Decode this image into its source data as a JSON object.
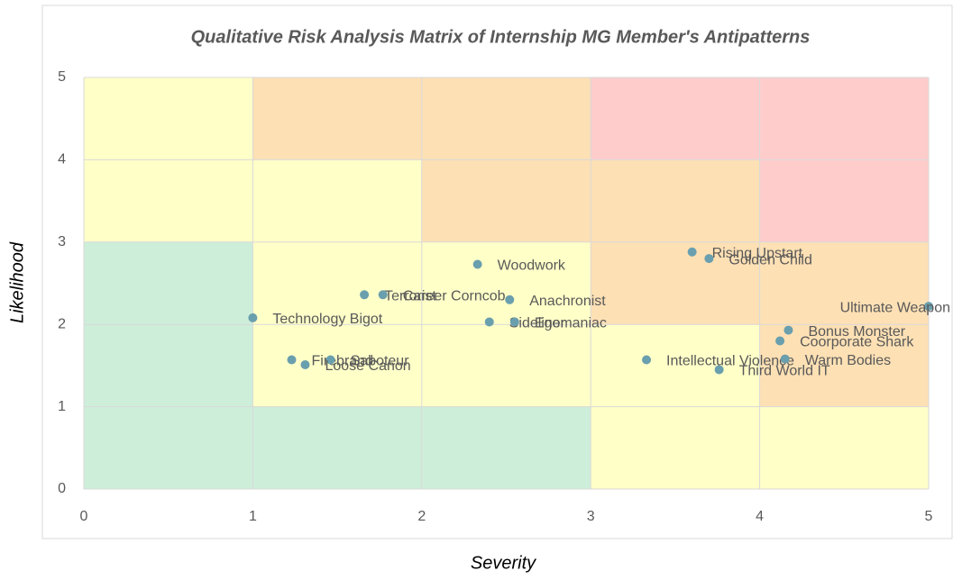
{
  "chart_data": {
    "type": "scatter",
    "title": "Qualitative Risk Analysis Matrix of Internship MG Member's Antipatterns",
    "x_label": "Severity",
    "y_label": "Likelihood",
    "xlim": [
      0,
      5
    ],
    "ylim": [
      0,
      5
    ],
    "xticks": [
      0,
      1,
      2,
      3,
      4,
      5
    ],
    "yticks": [
      0,
      1,
      2,
      3,
      4,
      5
    ],
    "grid": true,
    "marker_color": "#6a9fae",
    "zone_colors": [
      [
        "#cdeed9",
        "#cdeed9",
        "#cdeed9",
        "#ffffc8",
        "#ffffc8"
      ],
      [
        "#cdeed9",
        "#ffffc8",
        "#ffffc8",
        "#ffffc8",
        "#fde0b4"
      ],
      [
        "#cdeed9",
        "#ffffc8",
        "#ffffc8",
        "#fde0b4",
        "#fde0b4"
      ],
      [
        "#ffffc8",
        "#ffffc8",
        "#fde0b4",
        "#fde0b4",
        "#ffcccc"
      ],
      [
        "#ffffc8",
        "#fde0b4",
        "#fde0b4",
        "#ffcccc",
        "#ffcccc"
      ]
    ],
    "series": [
      {
        "name": "Antipatterns",
        "labels": [
          "Technology Bigot",
          "Firebrand",
          "Saboteur",
          "Loose Canon",
          "Terrorist",
          "Career Corncob",
          "Woodwork",
          "Anachronist",
          "Sideliner",
          "Egomaniac",
          "Rising Upstart",
          "Golden Child",
          "Intellectual Violence",
          "Third World IT",
          "Ultimate Weapon",
          "Bonus Monster",
          "Coorporate Shark",
          "Warm Bodies"
        ],
        "x": [
          1.0,
          1.23,
          1.46,
          1.31,
          1.66,
          1.77,
          2.33,
          2.52,
          2.4,
          2.55,
          3.6,
          3.7,
          3.33,
          3.76,
          5.0,
          4.17,
          4.12,
          4.15
        ],
        "values": [
          2.08,
          1.57,
          1.57,
          1.51,
          2.36,
          2.36,
          2.73,
          2.3,
          2.03,
          2.03,
          2.88,
          2.8,
          1.57,
          1.45,
          2.22,
          1.93,
          1.8,
          1.58
        ]
      }
    ]
  }
}
